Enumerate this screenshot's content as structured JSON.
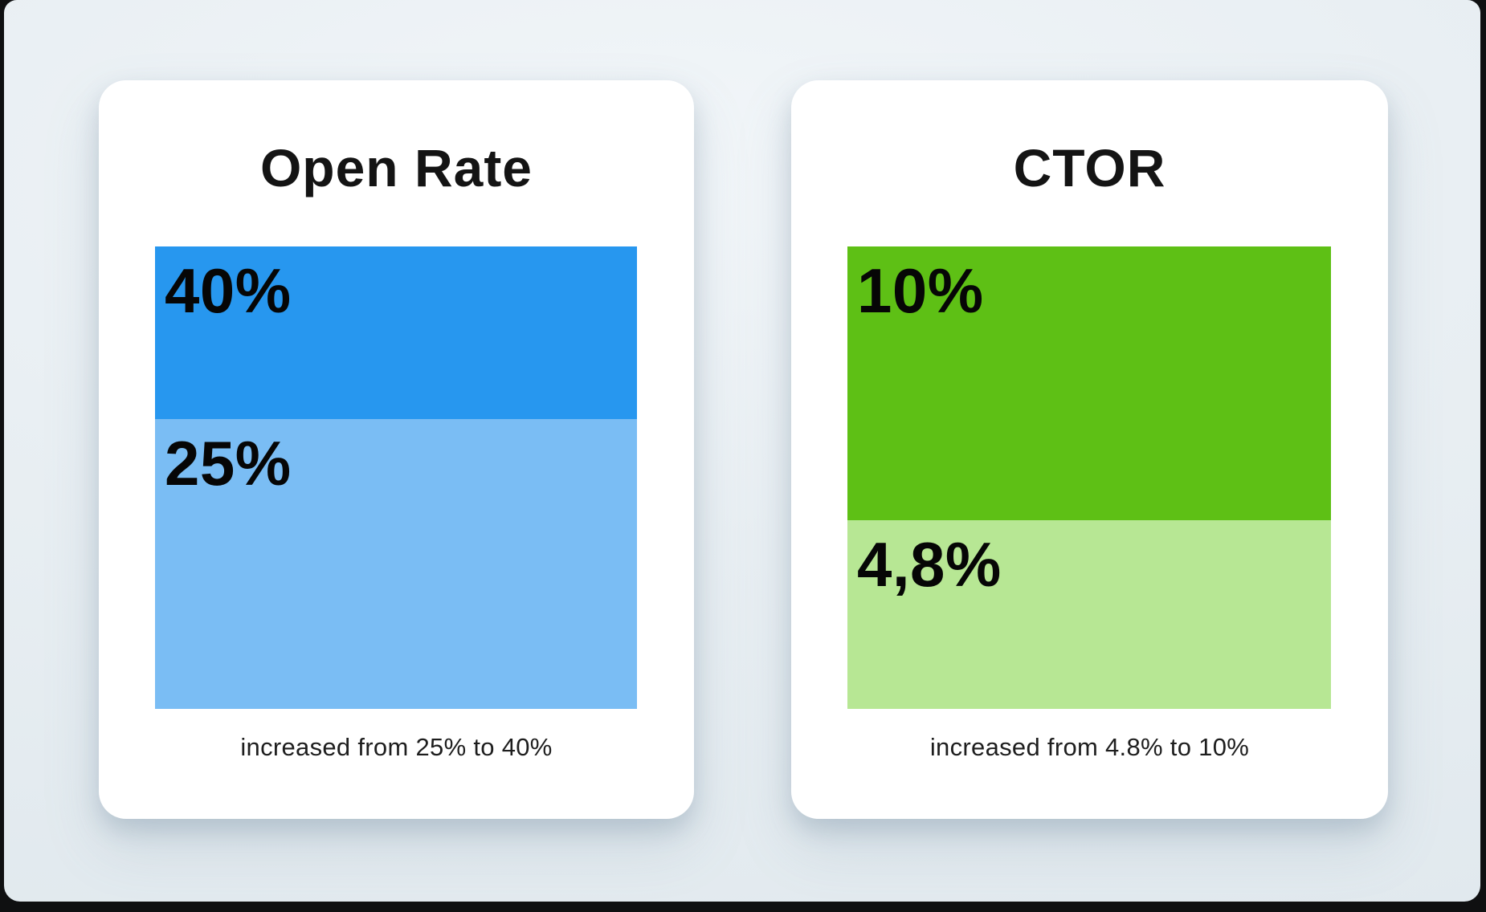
{
  "page": {
    "outer_background": "#0f1011",
    "panel_background": "#e9eff3"
  },
  "cards": [
    {
      "title": "Open Rate",
      "caption": "increased from 25% to 40%",
      "segments": [
        {
          "label": "40%",
          "color": "#2797ef",
          "height": "37.3%"
        },
        {
          "label": "25%",
          "color": "#7abdf4",
          "height": "62.7%"
        }
      ]
    },
    {
      "title": "CTOR",
      "caption": "increased from 4.8% to 10%",
      "segments": [
        {
          "label": "10%",
          "color": "#5ec015",
          "height": "59.2%"
        },
        {
          "label": "4,8%",
          "color": "#b7e794",
          "height": "40.8%"
        }
      ]
    }
  ],
  "chart_data": [
    {
      "type": "bar",
      "title": "Open Rate",
      "orientation": "vertical-stacked",
      "segments_top_to_bottom": [
        {
          "label": "40%",
          "value": 40,
          "color": "#2797ef"
        },
        {
          "label": "25%",
          "value": 25,
          "color": "#7abdf4"
        }
      ],
      "annotation": "increased from 25% to 40%",
      "legend": false,
      "grid": false,
      "layout_hint": {
        "segment_height_fractions": [
          0.373,
          0.627
        ]
      }
    },
    {
      "type": "bar",
      "title": "CTOR",
      "orientation": "vertical-stacked",
      "segments_top_to_bottom": [
        {
          "label": "10%",
          "value": 10,
          "color": "#5ec015"
        },
        {
          "label": "4,8%",
          "value": 4.8,
          "color": "#b7e794"
        }
      ],
      "annotation": "increased from 4.8% to 10%",
      "legend": false,
      "grid": false,
      "layout_hint": {
        "segment_height_fractions": [
          0.592,
          0.408
        ]
      }
    }
  ]
}
